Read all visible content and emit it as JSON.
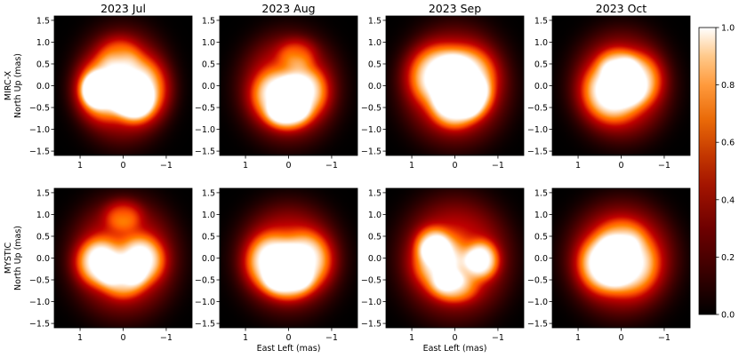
{
  "chart_data": {
    "type": "heatmap",
    "layout": "2 rows x 4 columns",
    "columns": [
      "2023 Jul",
      "2023 Aug",
      "2023 Sep",
      "2023 Oct"
    ],
    "row_labels": [
      {
        "instrument": "MIRC-X",
        "ylabel": "North Up (mas)"
      },
      {
        "instrument": "MYSTIC",
        "ylabel": "North Up (mas)"
      }
    ],
    "xlabel": "East Left (mas)",
    "x_range": [
      1.6,
      -1.6
    ],
    "y_range": [
      -1.6,
      1.6
    ],
    "x_ticks": [
      1,
      0,
      -1
    ],
    "x_tick_labels": [
      "1",
      "0",
      "−1"
    ],
    "y_ticks": [
      1.5,
      1.0,
      0.5,
      0.0,
      -0.5,
      -1.0,
      -1.5
    ],
    "y_tick_labels": [
      "1.5",
      "1.0",
      "0.5",
      "0.0",
      "−0.5",
      "−1.0",
      "−1.5"
    ],
    "colorbar": {
      "colormap": "gist_heat",
      "range": [
        0.0,
        1.0
      ],
      "ticks": [
        0.0,
        0.2,
        0.4,
        0.6,
        0.8,
        1.0
      ],
      "tick_labels": [
        "0.0",
        "0.2",
        "0.4",
        "0.6",
        "0.8",
        "1.0"
      ]
    },
    "images": [
      {
        "row": 0,
        "col": 0,
        "blobs": [
          {
            "x": 0.02,
            "y": 0.0,
            "rx": 1.05,
            "ry": 1.25,
            "v": 0.62
          },
          {
            "x": 0.55,
            "y": -0.1,
            "rx": 0.6,
            "ry": 0.7,
            "v": 0.5
          },
          {
            "x": -0.45,
            "y": -0.1,
            "rx": 0.65,
            "ry": 0.75,
            "v": 0.48
          },
          {
            "x": 0.65,
            "y": -0.1,
            "rx": 0.35,
            "ry": 0.38,
            "v": 0.45
          },
          {
            "x": -0.25,
            "y": -0.35,
            "rx": 0.45,
            "ry": 0.45,
            "v": 0.42
          },
          {
            "x": 0.1,
            "y": 0.75,
            "rx": 0.5,
            "ry": 0.4,
            "v": 0.25
          }
        ]
      },
      {
        "row": 0,
        "col": 1,
        "blobs": [
          {
            "x": 0.0,
            "y": -0.05,
            "rx": 1.1,
            "ry": 1.2,
            "v": 0.62
          },
          {
            "x": 0.3,
            "y": -0.25,
            "rx": 0.6,
            "ry": 0.6,
            "v": 0.45
          },
          {
            "x": -0.4,
            "y": -0.15,
            "rx": 0.55,
            "ry": 0.6,
            "v": 0.45
          },
          {
            "x": 0.0,
            "y": -0.7,
            "rx": 0.5,
            "ry": 0.35,
            "v": 0.4
          },
          {
            "x": -0.2,
            "y": 0.75,
            "rx": 0.45,
            "ry": 0.35,
            "v": 0.25
          }
        ]
      },
      {
        "row": 0,
        "col": 2,
        "blobs": [
          {
            "x": 0.0,
            "y": 0.0,
            "rx": 1.2,
            "ry": 1.3,
            "v": 0.62
          },
          {
            "x": 0.45,
            "y": 0.25,
            "rx": 0.7,
            "ry": 0.7,
            "v": 0.5
          },
          {
            "x": -0.35,
            "y": 0.2,
            "rx": 0.65,
            "ry": 0.7,
            "v": 0.45
          },
          {
            "x": 0.0,
            "y": -0.55,
            "rx": 0.55,
            "ry": 0.45,
            "v": 0.48
          },
          {
            "x": -0.5,
            "y": -0.3,
            "rx": 0.4,
            "ry": 0.45,
            "v": 0.3
          }
        ]
      },
      {
        "row": 0,
        "col": 3,
        "blobs": [
          {
            "x": 0.0,
            "y": 0.0,
            "rx": 1.1,
            "ry": 1.2,
            "v": 0.62
          },
          {
            "x": 0.25,
            "y": -0.15,
            "rx": 0.7,
            "ry": 0.7,
            "v": 0.5
          },
          {
            "x": -0.45,
            "y": 0.15,
            "rx": 0.55,
            "ry": 0.6,
            "v": 0.4
          },
          {
            "x": 0.1,
            "y": 0.55,
            "rx": 0.45,
            "ry": 0.35,
            "v": 0.25
          }
        ]
      },
      {
        "row": 1,
        "col": 0,
        "blobs": [
          {
            "x": 0.0,
            "y": 0.0,
            "rx": 1.2,
            "ry": 1.3,
            "v": 0.6
          },
          {
            "x": 0.6,
            "y": -0.1,
            "rx": 0.55,
            "ry": 0.55,
            "v": 0.55
          },
          {
            "x": -0.45,
            "y": -0.05,
            "rx": 0.55,
            "ry": 0.55,
            "v": 0.5
          },
          {
            "x": 0.0,
            "y": -0.55,
            "rx": 0.5,
            "ry": 0.4,
            "v": 0.35
          },
          {
            "x": 0.0,
            "y": 1.0,
            "rx": 0.45,
            "ry": 0.35,
            "v": 0.3
          }
        ]
      },
      {
        "row": 1,
        "col": 1,
        "blobs": [
          {
            "x": 0.0,
            "y": 0.0,
            "rx": 1.15,
            "ry": 1.2,
            "v": 0.6
          },
          {
            "x": 0.45,
            "y": -0.1,
            "rx": 0.6,
            "ry": 0.65,
            "v": 0.52
          },
          {
            "x": -0.45,
            "y": -0.05,
            "rx": 0.6,
            "ry": 0.65,
            "v": 0.48
          },
          {
            "x": 0.0,
            "y": -0.6,
            "rx": 0.55,
            "ry": 0.4,
            "v": 0.42
          }
        ]
      },
      {
        "row": 1,
        "col": 2,
        "blobs": [
          {
            "x": 0.0,
            "y": 0.0,
            "rx": 1.25,
            "ry": 1.35,
            "v": 0.58
          },
          {
            "x": 0.35,
            "y": -0.1,
            "rx": 0.65,
            "ry": 0.65,
            "v": 0.48
          },
          {
            "x": -0.65,
            "y": -0.05,
            "rx": 0.4,
            "ry": 0.45,
            "v": 0.55
          },
          {
            "x": 0.55,
            "y": 0.35,
            "rx": 0.4,
            "ry": 0.4,
            "v": 0.3
          },
          {
            "x": 0.0,
            "y": -0.7,
            "rx": 0.55,
            "ry": 0.35,
            "v": 0.35
          }
        ]
      },
      {
        "row": 1,
        "col": 3,
        "blobs": [
          {
            "x": 0.0,
            "y": 0.0,
            "rx": 1.2,
            "ry": 1.25,
            "v": 0.65
          },
          {
            "x": 0.45,
            "y": -0.15,
            "rx": 0.6,
            "ry": 0.65,
            "v": 0.5
          },
          {
            "x": -0.25,
            "y": -0.15,
            "rx": 0.65,
            "ry": 0.7,
            "v": 0.4
          },
          {
            "x": 0.0,
            "y": 0.55,
            "rx": 0.55,
            "ry": 0.4,
            "v": 0.2
          }
        ]
      }
    ]
  }
}
